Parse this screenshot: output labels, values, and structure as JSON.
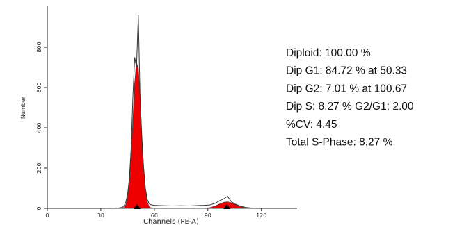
{
  "chart_data": {
    "type": "line",
    "xlabel": "Channels (PE-A)",
    "ylabel": "Number",
    "xlim": [
      0,
      140
    ],
    "ylim": [
      0,
      1000
    ],
    "xticks": [
      0,
      30,
      60,
      90,
      120
    ],
    "yticks": [
      0,
      200,
      400,
      600,
      800
    ],
    "grid": false,
    "x": [
      30,
      34,
      38,
      40,
      42,
      43,
      44,
      45,
      46,
      47,
      48,
      49,
      50,
      51,
      52,
      53,
      54,
      55,
      56,
      57,
      58,
      60,
      62,
      66,
      70,
      75,
      80,
      85,
      88,
      91,
      94,
      97,
      99,
      101,
      103,
      105,
      108,
      111,
      114,
      118
    ],
    "series": [
      {
        "color": "#ee0000",
        "fill": true,
        "values": [
          0,
          0,
          0,
          0,
          1,
          5,
          17,
          52,
          127,
          261,
          443,
          622,
          723,
          697,
          556,
          366,
          200,
          90,
          34,
          10,
          3,
          0,
          0,
          0,
          0,
          0,
          0,
          0,
          0,
          0,
          0,
          0,
          0,
          0,
          0,
          0,
          0,
          0,
          0,
          0
        ]
      },
      {
        "color": "#ee0000",
        "fill": true,
        "values": [
          0,
          0,
          0,
          0,
          0,
          0,
          0,
          0,
          0,
          0,
          0,
          0,
          0,
          0,
          0,
          0,
          0,
          0,
          0,
          0,
          0,
          0,
          0,
          0,
          0,
          0,
          0,
          0,
          1,
          3,
          11,
          23,
          30,
          32,
          28,
          20,
          9,
          2,
          0,
          0
        ]
      },
      {
        "color": "#333333",
        "fill": false,
        "values": [
          0,
          0,
          1,
          2,
          5,
          12,
          30,
          70,
          150,
          300,
          560,
          750,
          700,
          960,
          560,
          330,
          200,
          100,
          45,
          25,
          18,
          15,
          14,
          13,
          12,
          13,
          12,
          14,
          15,
          17,
          25,
          40,
          48,
          60,
          35,
          22,
          12,
          5,
          2,
          0
        ]
      }
    ],
    "peak_markers": [
      50.33,
      100.67
    ],
    "annotations": [
      "Diploid: 100.00 %",
      "Dip G1: 84.72 % at 50.33",
      "Dip G2: 7.01 % at 100.67",
      "Dip S: 8.27 % G2/G1: 2.00",
      "%CV: 4.45",
      "Total S-Phase: 8.27 %"
    ]
  }
}
